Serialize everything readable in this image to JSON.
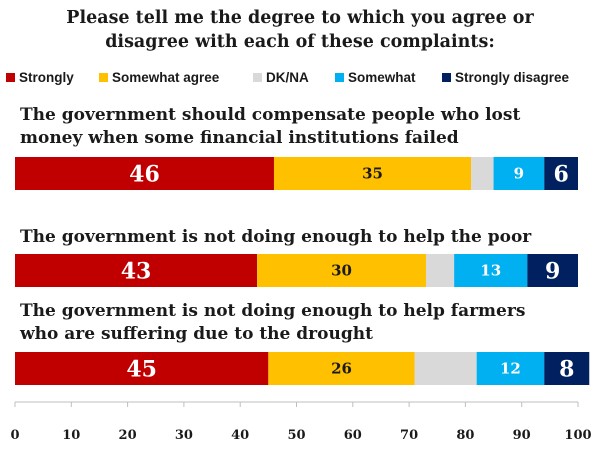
{
  "title": {
    "line1": "Please tell me the degree to which you agree or",
    "line2": "disagree with each of these complaints:"
  },
  "legend": [
    {
      "label": "Strongly",
      "color": "#c00000"
    },
    {
      "label": "Somewhat agree",
      "color": "#ffc000"
    },
    {
      "label": "DK/NA",
      "color": "#d9d9d9"
    },
    {
      "label": "Somewhat",
      "color": "#00b0f0"
    },
    {
      "label": "Strongly disagree",
      "color": "#002060"
    }
  ],
  "questions": [
    {
      "line1": "The government should compensate people who lost",
      "line2": "money when some financial institutions failed"
    },
    {
      "line1": "The government is not doing enough to help the poor",
      "line2": ""
    },
    {
      "line1": "The government is not doing enough to help farmers",
      "line2": "who are suffering due to the drought"
    }
  ],
  "chart_data": {
    "type": "bar",
    "orientation": "horizontal",
    "stacked": true,
    "categories": [
      "The government should compensate people who lost money when some financial institutions failed",
      "The government is not doing enough to help the poor",
      "The government is not doing enough to help farmers who are suffering due to the drought"
    ],
    "series": [
      {
        "name": "Strongly",
        "color": "#c00000",
        "values": [
          46,
          43,
          45
        ],
        "labels": [
          "46",
          "43",
          "45"
        ]
      },
      {
        "name": "Somewhat agree",
        "color": "#ffc000",
        "values": [
          35,
          30,
          26
        ],
        "labels": [
          "35",
          "30",
          "26"
        ]
      },
      {
        "name": "DK/NA",
        "color": "#d9d9d9",
        "values": [
          4,
          5,
          11
        ],
        "labels": [
          "",
          "",
          ""
        ]
      },
      {
        "name": "Somewhat",
        "color": "#00b0f0",
        "values": [
          9,
          13,
          12
        ],
        "labels": [
          "9",
          "13",
          "12"
        ]
      },
      {
        "name": "Strongly disagree",
        "color": "#002060",
        "values": [
          6,
          9,
          8
        ],
        "labels": [
          "6",
          "9",
          "8"
        ]
      }
    ],
    "xlim": [
      0,
      100
    ],
    "xticks": [
      "0",
      "10",
      "20",
      "30",
      "40",
      "50",
      "60",
      "70",
      "80",
      "90",
      "100"
    ],
    "grid": false,
    "legend_position": "top"
  }
}
